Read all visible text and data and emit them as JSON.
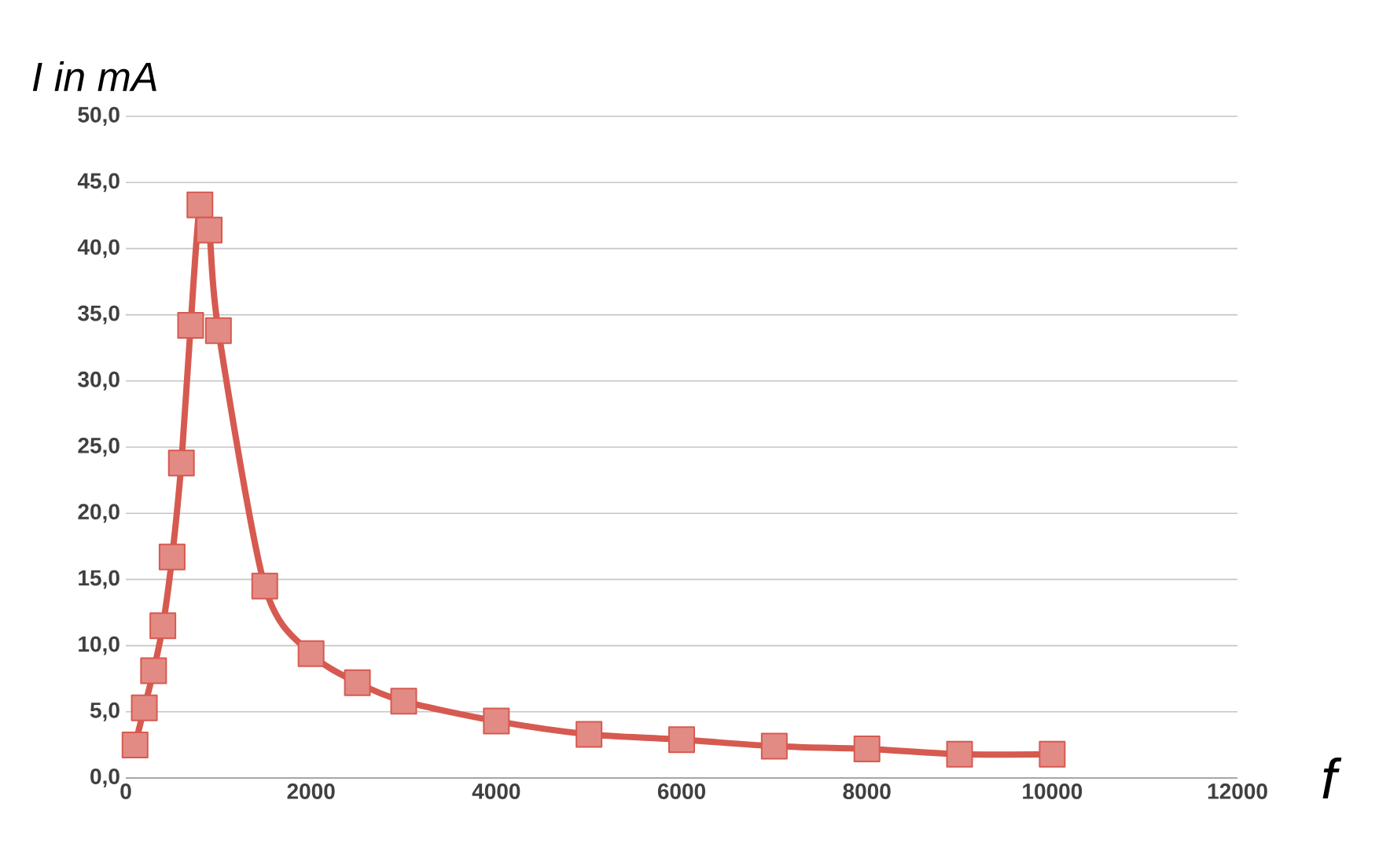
{
  "chart_data": {
    "type": "line",
    "xlabel": "f",
    "ylabel": "I in mA",
    "x": [
      100,
      200,
      300,
      400,
      500,
      600,
      700,
      800,
      900,
      1000,
      1500,
      2000,
      2500,
      3000,
      4000,
      5000,
      6000,
      7000,
      8000,
      9000,
      10000
    ],
    "series": [
      {
        "color": "#d65a50",
        "values": [
          2.5,
          5.3,
          8.1,
          11.5,
          16.7,
          23.8,
          34.2,
          43.3,
          41.4,
          33.8,
          14.5,
          9.4,
          7.2,
          5.8,
          4.3,
          3.3,
          2.9,
          2.4,
          2.2,
          1.8,
          1.8
        ]
      }
    ],
    "xlim": [
      0,
      12000
    ],
    "ylim": [
      0,
      50
    ],
    "xticks": [
      0,
      2000,
      4000,
      6000,
      8000,
      10000,
      12000
    ],
    "yticks": [
      {
        "value": 0,
        "label": "0,0"
      },
      {
        "value": 5,
        "label": "5,0"
      },
      {
        "value": 10,
        "label": "10,0"
      },
      {
        "value": 15,
        "label": "15,0"
      },
      {
        "value": 20,
        "label": "20,0"
      },
      {
        "value": 25,
        "label": "25,0"
      },
      {
        "value": 30,
        "label": "30,0"
      },
      {
        "value": 35,
        "label": "35,0"
      },
      {
        "value": 40,
        "label": "40,0"
      },
      {
        "value": 45,
        "label": "45,0"
      },
      {
        "value": 50,
        "label": "50,0"
      }
    ],
    "grid": "y",
    "marker": "square",
    "line_style": "solid"
  }
}
